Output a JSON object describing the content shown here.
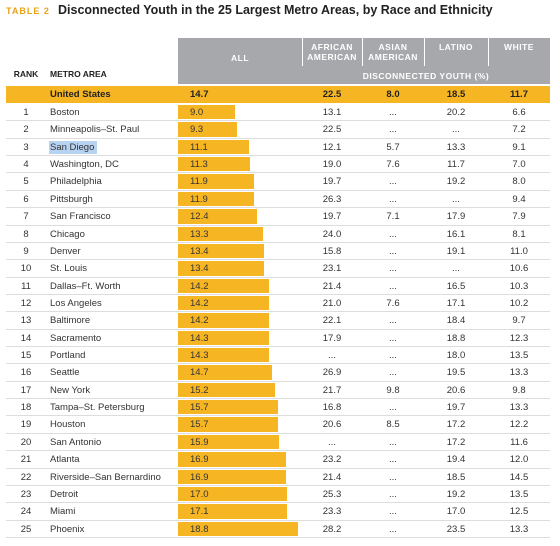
{
  "title": {
    "label": "TABLE 2",
    "text": "Disconnected Youth in the 25 Largest Metro Areas, by Race and Ethnicity"
  },
  "table": {
    "columns": [
      "RANK",
      "METRO AREA",
      "ALL",
      "AFRICAN AMERICAN",
      "ASIAN AMERICAN",
      "LATINO",
      "WHITE"
    ],
    "unit_label": "DISCONNECTED YOUTH (%)",
    "total": [
      "United States",
      "14.7",
      "22.5",
      "8.0",
      "18.5",
      "11.7"
    ],
    "rows": [
      [
        "1",
        "Boston",
        "9.0",
        "13.1",
        "...",
        "20.2",
        "6.6"
      ],
      [
        "2",
        "Minneapolis–St. Paul",
        "9.3",
        "22.5",
        "...",
        "...",
        "7.2"
      ],
      [
        "3",
        "San Diego",
        "11.1",
        "12.1",
        "5.7",
        "13.3",
        "9.1"
      ],
      [
        "4",
        "Washington, DC",
        "11.3",
        "19.0",
        "7.6",
        "11.7",
        "7.0"
      ],
      [
        "5",
        "Philadelphia",
        "11.9",
        "19.7",
        "...",
        "19.2",
        "8.0"
      ],
      [
        "6",
        "Pittsburgh",
        "11.9",
        "26.3",
        "...",
        "...",
        "9.4"
      ],
      [
        "7",
        "San Francisco",
        "12.4",
        "19.7",
        "7.1",
        "17.9",
        "7.9"
      ],
      [
        "8",
        "Chicago",
        "13.3",
        "24.0",
        "...",
        "16.1",
        "8.1"
      ],
      [
        "9",
        "Denver",
        "13.4",
        "15.8",
        "...",
        "19.1",
        "11.0"
      ],
      [
        "10",
        "St. Louis",
        "13.4",
        "23.1",
        "...",
        "...",
        "10.6"
      ],
      [
        "11",
        "Dallas–Ft. Worth",
        "14.2",
        "21.4",
        "...",
        "16.5",
        "10.3"
      ],
      [
        "12",
        "Los Angeles",
        "14.2",
        "21.0",
        "7.6",
        "17.1",
        "10.2"
      ],
      [
        "13",
        "Baltimore",
        "14.2",
        "22.1",
        "...",
        "18.4",
        "9.7"
      ],
      [
        "14",
        "Sacramento",
        "14.3",
        "17.9",
        "...",
        "18.8",
        "12.3"
      ],
      [
        "15",
        "Portland",
        "14.3",
        "...",
        "...",
        "18.0",
        "13.5"
      ],
      [
        "16",
        "Seattle",
        "14.7",
        "26.9",
        "...",
        "19.5",
        "13.3"
      ],
      [
        "17",
        "New York",
        "15.2",
        "21.7",
        "9.8",
        "20.6",
        "9.8"
      ],
      [
        "18",
        "Tampa–St. Petersburg",
        "15.7",
        "16.8",
        "...",
        "19.7",
        "13.3"
      ],
      [
        "19",
        "Houston",
        "15.7",
        "20.6",
        "8.5",
        "17.2",
        "12.2"
      ],
      [
        "20",
        "San Antonio",
        "15.9",
        "...",
        "...",
        "17.2",
        "11.6"
      ],
      [
        "21",
        "Atlanta",
        "16.9",
        "23.2",
        "...",
        "19.4",
        "12.0"
      ],
      [
        "22",
        "Riverside–San Bernardino",
        "16.9",
        "21.4",
        "...",
        "18.5",
        "14.5"
      ],
      [
        "23",
        "Detroit",
        "17.0",
        "25.3",
        "...",
        "19.2",
        "13.5"
      ],
      [
        "24",
        "Miami",
        "17.1",
        "23.3",
        "...",
        "17.0",
        "12.5"
      ],
      [
        "25",
        "Phoenix",
        "18.8",
        "28.2",
        "...",
        "23.5",
        "13.3"
      ]
    ]
  }
}
